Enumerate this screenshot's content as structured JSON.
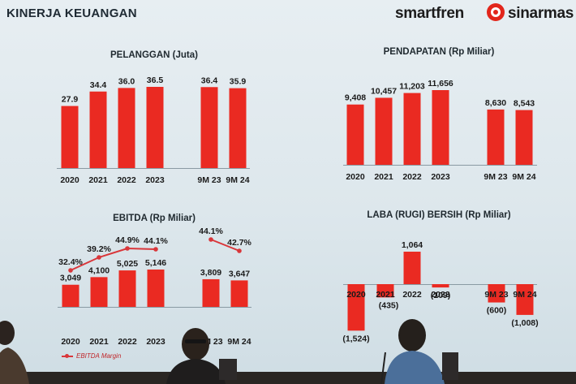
{
  "slide": {
    "title": "KINERJA KEUANGAN",
    "brand_left": "smartfren",
    "brand_right": "sinarmas"
  },
  "colors": {
    "bar": "#ea2a22",
    "line": "#d9363a",
    "text": "#1a1a1a"
  },
  "legend": {
    "label": "EBITDA Margin"
  },
  "chart_data": [
    {
      "type": "bar",
      "title": "PELANGGAN (Juta)",
      "categories": [
        "2020",
        "2021",
        "2022",
        "2023",
        "9M 23",
        "9M 24"
      ],
      "labels": [
        "27.9",
        "34.4",
        "36.0",
        "36.5",
        "36.4",
        "35.9"
      ],
      "values": [
        27.9,
        34.4,
        36.0,
        36.5,
        36.4,
        35.9
      ]
    },
    {
      "type": "bar",
      "title": "PENDAPATAN (Rp Miliar)",
      "categories": [
        "2020",
        "2021",
        "2022",
        "2023",
        "9M 23",
        "9M 24"
      ],
      "labels": [
        "9,408",
        "10,457",
        "11,203",
        "11,656",
        "8,630",
        "8,543"
      ],
      "values": [
        9408,
        10457,
        11203,
        11656,
        8630,
        8543
      ]
    },
    {
      "type": "bar",
      "title": "EBITDA (Rp Miliar)",
      "categories": [
        "2020",
        "2021",
        "2022",
        "2023",
        "9M 23",
        "9M 24"
      ],
      "labels": [
        "3,049",
        "4,100",
        "5,025",
        "5,146",
        "3,809",
        "3,647"
      ],
      "values": [
        3049,
        4100,
        5025,
        5146,
        3809,
        3647
      ],
      "line": {
        "name": "EBITDA Margin",
        "labels": [
          "32.4%",
          "39.2%",
          "44.9%",
          "44.1%",
          "44.1%",
          "42.7%"
        ],
        "values": [
          32.4,
          39.2,
          44.9,
          44.1,
          44.1,
          42.7
        ]
      }
    },
    {
      "type": "bar",
      "title": "LABA (RUGI) BERSIH (Rp Miliar)",
      "categories": [
        "2020",
        "2021",
        "2022",
        "2023",
        "9M 23",
        "9M 24"
      ],
      "labels": [
        "(1,524)",
        "(435)",
        "1,064",
        "(109)",
        "(600)",
        "(1,008)"
      ],
      "values": [
        -1524,
        -435,
        1064,
        -109,
        -600,
        -1008
      ]
    }
  ]
}
